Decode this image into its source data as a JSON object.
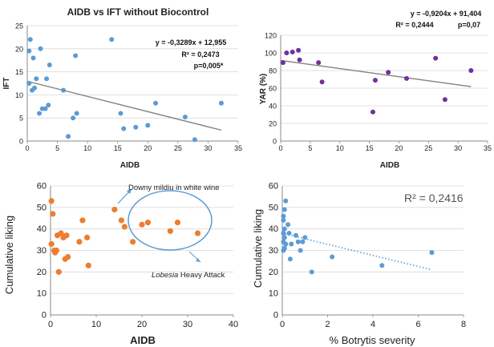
{
  "chart_data": [
    {
      "type": "scatter",
      "title": "AIDB vs IFT without Biocontrol",
      "xlabel": "AIDB",
      "ylabel": "IFT",
      "xlim": [
        0,
        35
      ],
      "ylim": [
        0,
        25
      ],
      "x_ticks": [
        "0",
        "5",
        "10",
        "15",
        "20",
        "25",
        "30",
        "35"
      ],
      "y_ticks": [
        "0",
        "5",
        "10",
        "15",
        "20",
        "25"
      ],
      "grid": true,
      "point_color": "#5b9bd5",
      "trendline": {
        "slope": -0.3289,
        "intercept": 12.955,
        "color": "#808080"
      },
      "annotations": [
        "y = -0,3289x + 12,955",
        "R² = 0,2473",
        "p=0,005*"
      ],
      "points": [
        {
          "x": 0.3,
          "y": 19.5
        },
        {
          "x": 0.5,
          "y": 22
        },
        {
          "x": 0.3,
          "y": 12.5
        },
        {
          "x": 0.8,
          "y": 11
        },
        {
          "x": 1.2,
          "y": 11.5
        },
        {
          "x": 1.0,
          "y": 18
        },
        {
          "x": 1.5,
          "y": 13.5
        },
        {
          "x": 2.0,
          "y": 6
        },
        {
          "x": 2.2,
          "y": 20
        },
        {
          "x": 2.5,
          "y": 7
        },
        {
          "x": 3.0,
          "y": 7
        },
        {
          "x": 3.2,
          "y": 13.5
        },
        {
          "x": 3.5,
          "y": 7.8
        },
        {
          "x": 3.7,
          "y": 16.5
        },
        {
          "x": 6.0,
          "y": 11
        },
        {
          "x": 6.8,
          "y": 1
        },
        {
          "x": 7.6,
          "y": 5
        },
        {
          "x": 8.0,
          "y": 18.5
        },
        {
          "x": 8.2,
          "y": 6
        },
        {
          "x": 14.0,
          "y": 22
        },
        {
          "x": 15.5,
          "y": 6
        },
        {
          "x": 16.0,
          "y": 2.7
        },
        {
          "x": 18.0,
          "y": 3
        },
        {
          "x": 20.0,
          "y": 3.4
        },
        {
          "x": 21.3,
          "y": 8.2
        },
        {
          "x": 26.2,
          "y": 5.2
        },
        {
          "x": 27.8,
          "y": 0.3
        },
        {
          "x": 32.2,
          "y": 8.2
        }
      ]
    },
    {
      "type": "scatter",
      "xlabel": "AIDB",
      "ylabel": "YAR (%)",
      "xlim": [
        0,
        35
      ],
      "ylim": [
        0,
        120
      ],
      "x_ticks": [
        "0",
        "5",
        "10",
        "15",
        "20",
        "25",
        "30",
        "35"
      ],
      "y_ticks": [
        "0",
        "20",
        "40",
        "60",
        "80",
        "100",
        "120"
      ],
      "grid": true,
      "point_color": "#7030a0",
      "trendline": {
        "slope": -0.9204,
        "intercept": 91.404,
        "color": "#808080"
      },
      "annotations": [
        "y = -0,9204x + 91,404",
        "R² = 0,2444",
        "p=0,07"
      ],
      "points": [
        {
          "x": 0.4,
          "y": 89
        },
        {
          "x": 1.0,
          "y": 100
        },
        {
          "x": 2.0,
          "y": 101
        },
        {
          "x": 3.0,
          "y": 103
        },
        {
          "x": 3.2,
          "y": 92
        },
        {
          "x": 6.4,
          "y": 89
        },
        {
          "x": 7.0,
          "y": 67
        },
        {
          "x": 15.6,
          "y": 33
        },
        {
          "x": 16.0,
          "y": 69
        },
        {
          "x": 18.2,
          "y": 78
        },
        {
          "x": 21.3,
          "y": 71
        },
        {
          "x": 26.2,
          "y": 94
        },
        {
          "x": 27.8,
          "y": 47
        },
        {
          "x": 32.2,
          "y": 80
        }
      ]
    },
    {
      "type": "scatter",
      "xlabel": "AIDB",
      "ylabel": "Cumulative liking",
      "xlim": [
        0,
        40
      ],
      "ylim": [
        0,
        60
      ],
      "x_ticks": [
        "0",
        "10",
        "20",
        "30",
        "40"
      ],
      "y_ticks": [
        "0",
        "10",
        "20",
        "30",
        "40",
        "50",
        "60"
      ],
      "grid": true,
      "point_color": "#ed7d31",
      "annotations": [
        "Downy mildiu in white wine",
        {
          "italic": "Lobesia",
          "rest": " Heavy Attack"
        }
      ],
      "points": [
        {
          "x": 0.2,
          "y": 53
        },
        {
          "x": 0.5,
          "y": 47
        },
        {
          "x": 0.2,
          "y": 33
        },
        {
          "x": 0.8,
          "y": 30
        },
        {
          "x": 1.0,
          "y": 29
        },
        {
          "x": 1.3,
          "y": 30
        },
        {
          "x": 1.5,
          "y": 37
        },
        {
          "x": 1.8,
          "y": 20
        },
        {
          "x": 2.3,
          "y": 38
        },
        {
          "x": 2.8,
          "y": 36
        },
        {
          "x": 3.2,
          "y": 26
        },
        {
          "x": 3.5,
          "y": 37
        },
        {
          "x": 3.8,
          "y": 27
        },
        {
          "x": 6.3,
          "y": 34
        },
        {
          "x": 7.0,
          "y": 44
        },
        {
          "x": 8.0,
          "y": 36
        },
        {
          "x": 8.3,
          "y": 23
        },
        {
          "x": 14.0,
          "y": 49
        },
        {
          "x": 15.5,
          "y": 44
        },
        {
          "x": 16.2,
          "y": 41
        },
        {
          "x": 18.0,
          "y": 34
        },
        {
          "x": 20.0,
          "y": 42
        },
        {
          "x": 21.3,
          "y": 43
        },
        {
          "x": 26.2,
          "y": 39
        },
        {
          "x": 27.8,
          "y": 43
        },
        {
          "x": 32.2,
          "y": 38
        }
      ]
    },
    {
      "type": "scatter",
      "xlabel": "% Botrytis severity",
      "ylabel": "Cumulative liking",
      "xlim": [
        0,
        8
      ],
      "ylim": [
        0,
        60
      ],
      "x_ticks": [
        "0",
        "2",
        "4",
        "6",
        "8"
      ],
      "y_ticks": [
        "0",
        "10",
        "20",
        "30",
        "40",
        "50",
        "60"
      ],
      "grid": true,
      "point_color": "#5b9bd5",
      "trendline": {
        "x": [
          0,
          6.6
        ],
        "y": [
          38,
          21
        ],
        "color": "#5b9bd5",
        "style": "dotted"
      },
      "annotations": [
        "R² = 0,2416"
      ],
      "points": [
        {
          "x": 0.05,
          "y": 46
        },
        {
          "x": 0.05,
          "y": 44
        },
        {
          "x": 0.1,
          "y": 40
        },
        {
          "x": 0.05,
          "y": 38
        },
        {
          "x": 0.1,
          "y": 36
        },
        {
          "x": 0.05,
          "y": 34
        },
        {
          "x": 0.15,
          "y": 33
        },
        {
          "x": 0.05,
          "y": 30
        },
        {
          "x": 0.1,
          "y": 31
        },
        {
          "x": 0.1,
          "y": 49
        },
        {
          "x": 0.15,
          "y": 53
        },
        {
          "x": 0.25,
          "y": 42
        },
        {
          "x": 0.3,
          "y": 38
        },
        {
          "x": 0.35,
          "y": 26
        },
        {
          "x": 0.4,
          "y": 33
        },
        {
          "x": 0.6,
          "y": 37
        },
        {
          "x": 0.7,
          "y": 34
        },
        {
          "x": 0.8,
          "y": 30
        },
        {
          "x": 0.9,
          "y": 34
        },
        {
          "x": 1.0,
          "y": 36
        },
        {
          "x": 1.3,
          "y": 20
        },
        {
          "x": 2.2,
          "y": 27
        },
        {
          "x": 4.4,
          "y": 23
        },
        {
          "x": 6.6,
          "y": 29
        }
      ]
    }
  ]
}
